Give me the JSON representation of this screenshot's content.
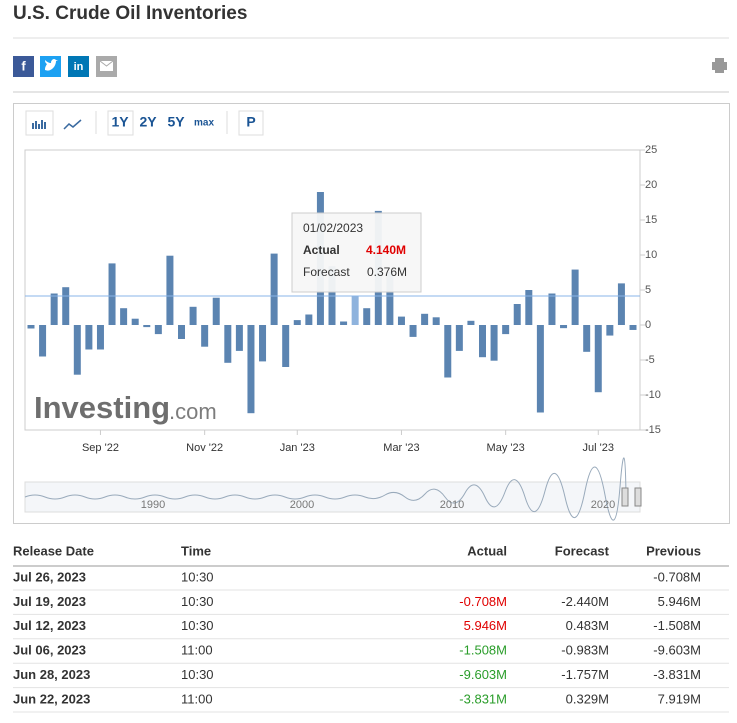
{
  "header": {
    "title": "U.S. Crude Oil Inventories",
    "share_icons": [
      "f",
      "in"
    ]
  },
  "toolbar": {
    "ranges": [
      "1Y",
      "2Y",
      "5Y",
      "max"
    ],
    "extra": "P"
  },
  "chart_data": {
    "type": "bar",
    "color": "#5b84b1",
    "highlight_color": "#8fb3dd",
    "categories": [
      null,
      null,
      null,
      null,
      null,
      null,
      "Sep '22",
      null,
      null,
      null,
      null,
      null,
      null,
      null,
      null,
      "Nov '22",
      null,
      null,
      null,
      null,
      null,
      null,
      null,
      "Jan '23",
      null,
      null,
      null,
      null,
      null,
      null,
      null,
      null,
      "Mar '23",
      null,
      null,
      null,
      null,
      null,
      null,
      null,
      null,
      "May '23",
      null,
      null,
      null,
      null,
      null,
      null,
      null,
      "Jul '23",
      null,
      null,
      null
    ],
    "values": [
      -0.5,
      -4.5,
      4.5,
      5.4,
      -7.1,
      -3.5,
      -3.5,
      8.8,
      2.4,
      0.9,
      -0.3,
      -1.3,
      9.9,
      -2.0,
      2.6,
      -3.1,
      3.9,
      -5.4,
      -3.7,
      -12.6,
      -5.2,
      10.2,
      -6.0,
      0.7,
      1.5,
      19.0,
      8.4,
      0.5,
      4.14,
      2.4,
      16.3,
      7.6,
      1.2,
      -1.7,
      1.6,
      1.1,
      -7.5,
      -3.7,
      0.6,
      -4.6,
      -5.1,
      -1.3,
      3.0,
      5.0,
      -12.5,
      4.5,
      -0.45,
      7.919,
      -3.831,
      -9.603,
      -1.508,
      5.946,
      -0.708
    ],
    "ylim": [
      -15,
      25
    ],
    "yticks": [
      25,
      20,
      15,
      10,
      5,
      0,
      -5,
      -10,
      -15
    ],
    "grid": false,
    "highlight_index": 28,
    "tooltip": {
      "date": "01/02/2023",
      "actual_label": "Actual",
      "actual": "4.140M",
      "actual_color": "#e00000",
      "forecast_label": "Forecast",
      "forecast": "0.376M"
    },
    "watermark": {
      "brand": "Investing",
      "suffix": ".com"
    },
    "navigator_labels": [
      "1990",
      "2000",
      "2010",
      "2020"
    ]
  },
  "table": {
    "headers": [
      "Release Date",
      "Time",
      "Actual",
      "Forecast",
      "Previous"
    ],
    "rows": [
      [
        "Jul 26, 2023",
        "10:30",
        null,
        null,
        "-0.708M"
      ],
      [
        "Jul 19, 2023",
        "10:30",
        "-0.708M",
        "-2.440M",
        "5.946M"
      ],
      [
        "Jul 12, 2023",
        "10:30",
        "5.946M",
        "0.483M",
        "-1.508M"
      ],
      [
        "Jul 06, 2023",
        "11:00",
        "-1.508M",
        "-0.983M",
        "-9.603M"
      ],
      [
        "Jun 28, 2023",
        "10:30",
        "-9.603M",
        "-1.757M",
        "-3.831M"
      ],
      [
        "Jun 22, 2023",
        "11:00",
        "-3.831M",
        "0.329M",
        "7.919M"
      ]
    ],
    "actual_colors": [
      null,
      "#e00000",
      "#e00000",
      "#2a9d2a",
      "#2a9d2a",
      "#2a9d2a"
    ]
  }
}
